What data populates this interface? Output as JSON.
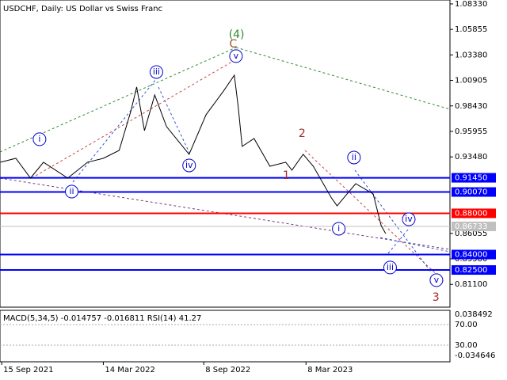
{
  "chart_data": {
    "type": "line",
    "title": "USDCHF, Daily:  US Dollar vs Swiss Franc",
    "series": [
      {
        "name": "USDCHF",
        "color": "#000000",
        "x": [
          "2021-09-13",
          "2021-10-10",
          "2021-11-05",
          "2021-11-28",
          "2022-01-10",
          "2022-02-14",
          "2022-03-14",
          "2022-04-11",
          "2022-05-02",
          "2022-05-12",
          "2022-05-26",
          "2022-06-13",
          "2022-07-04",
          "2022-08-13",
          "2022-09-12",
          "2022-10-13",
          "2022-11-01",
          "2022-11-08",
          "2022-11-15",
          "2022-12-06",
          "2023-01-03",
          "2023-01-31",
          "2023-02-11",
          "2023-03-03",
          "2023-03-21",
          "2023-04-22",
          "2023-05-02",
          "2023-06-04",
          "2023-07-05",
          "2023-07-19",
          "2023-07-27"
        ],
        "values": [
          0.9296,
          0.9334,
          0.9142,
          0.9296,
          0.9142,
          0.9296,
          0.9334,
          0.9411,
          0.9795,
          1.0026,
          0.9603,
          0.9949,
          0.9642,
          0.9373,
          0.9757,
          0.9988,
          1.0141,
          0.9834,
          0.945,
          0.9526,
          0.9257,
          0.9296,
          0.9219,
          0.9373,
          0.9257,
          0.895,
          0.8873,
          0.9088,
          0.8988,
          0.8681,
          0.8604
        ]
      }
    ],
    "xlim": [
      "2021-09-12",
      "2023-11-18"
    ],
    "xticks": [
      {
        "value": "2021-09-15",
        "label": "15 Sep 2021"
      },
      {
        "value": "2022-03-14",
        "label": "14 Mar 2022"
      },
      {
        "value": "2022-09-08",
        "label": "8 Sep 2022"
      },
      {
        "value": "2023-03-08",
        "label": "8 Mar 2023"
      }
    ],
    "ylim": [
      0.7889,
      1.0871
    ],
    "yticks": [
      {
        "value": 1.0833,
        "label": "1.08330"
      },
      {
        "value": 1.05855,
        "label": "1.05855"
      },
      {
        "value": 1.0338,
        "label": "1.03380"
      },
      {
        "value": 1.00905,
        "label": "1.00905"
      },
      {
        "value": 0.9843,
        "label": "0.98430"
      },
      {
        "value": 0.95955,
        "label": "0.95955"
      },
      {
        "value": 0.9348,
        "label": "0.93480"
      },
      {
        "value": 0.86055,
        "label": "0.86055"
      },
      {
        "value": 0.8358,
        "label": "0.83580"
      },
      {
        "value": 0.811,
        "label": "0.81100"
      }
    ],
    "levels": [
      {
        "value": 0.9145,
        "label": "0.91450",
        "color": "#0000ff"
      },
      {
        "value": 0.9007,
        "label": "0.90070",
        "color": "#0000ff"
      },
      {
        "value": 0.88,
        "label": "0.88000",
        "color": "#ff0000"
      },
      {
        "value": 0.86733,
        "label": "0.86733",
        "color": "#c0c0c0"
      },
      {
        "value": 0.84,
        "label": "0.84000",
        "color": "#0000ff"
      },
      {
        "value": 0.825,
        "label": "0.82500",
        "color": "#0000ff"
      }
    ],
    "annotations": [
      {
        "text": "i",
        "x": "2021-11-21",
        "y": 0.9519,
        "color": "#0000cc",
        "circled": true
      },
      {
        "text": "ii",
        "x": "2022-01-17",
        "y": 0.9011,
        "color": "#0000cc",
        "circled": true
      },
      {
        "text": "iii",
        "x": "2022-06-16",
        "y": 1.0172,
        "color": "#0000cc",
        "circled": true
      },
      {
        "text": "iv",
        "x": "2022-08-13",
        "y": 0.9265,
        "color": "#0000cc",
        "circled": true
      },
      {
        "text": "v",
        "x": "2022-11-04",
        "y": 1.0326,
        "color": "#0000cc",
        "circled": true
      },
      {
        "text": "C",
        "x": "2022-10-30",
        "y": 1.0441,
        "color": "#a0522d",
        "circled": false
      },
      {
        "text": "(4)",
        "x": "2022-11-05",
        "y": 1.0533,
        "color": "#2e8b2e",
        "circled": false
      },
      {
        "text": "1",
        "x": "2023-02-01",
        "y": 0.9165,
        "color": "#a52a2a",
        "circled": false
      },
      {
        "text": "2",
        "x": "2023-03-01",
        "y": 0.9573,
        "color": "#a52a2a",
        "circled": false
      },
      {
        "text": "ii",
        "x": "2023-06-01",
        "y": 0.9342,
        "color": "#0000cc",
        "circled": true
      },
      {
        "text": "i",
        "x": "2023-05-05",
        "y": 0.865,
        "color": "#0000cc",
        "circled": true
      },
      {
        "text": "iii",
        "x": "2023-08-04",
        "y": 0.8274,
        "color": "#0000cc",
        "circled": true
      },
      {
        "text": "iv",
        "x": "2023-09-06",
        "y": 0.8742,
        "color": "#0000cc",
        "circled": true
      },
      {
        "text": "v",
        "x": "2023-10-25",
        "y": 0.8151,
        "color": "#0000cc",
        "circled": true
      },
      {
        "text": "3",
        "x": "2023-10-24",
        "y": 0.7982,
        "color": "#a52a2a",
        "circled": false
      }
    ],
    "indicator": {
      "title": "MACD(5,34,5) -0.014757 -0.016811 RSI(14) 41.27",
      "labels": [
        "0.038492",
        "70.00",
        "30.00",
        "-0.034646"
      ]
    }
  }
}
